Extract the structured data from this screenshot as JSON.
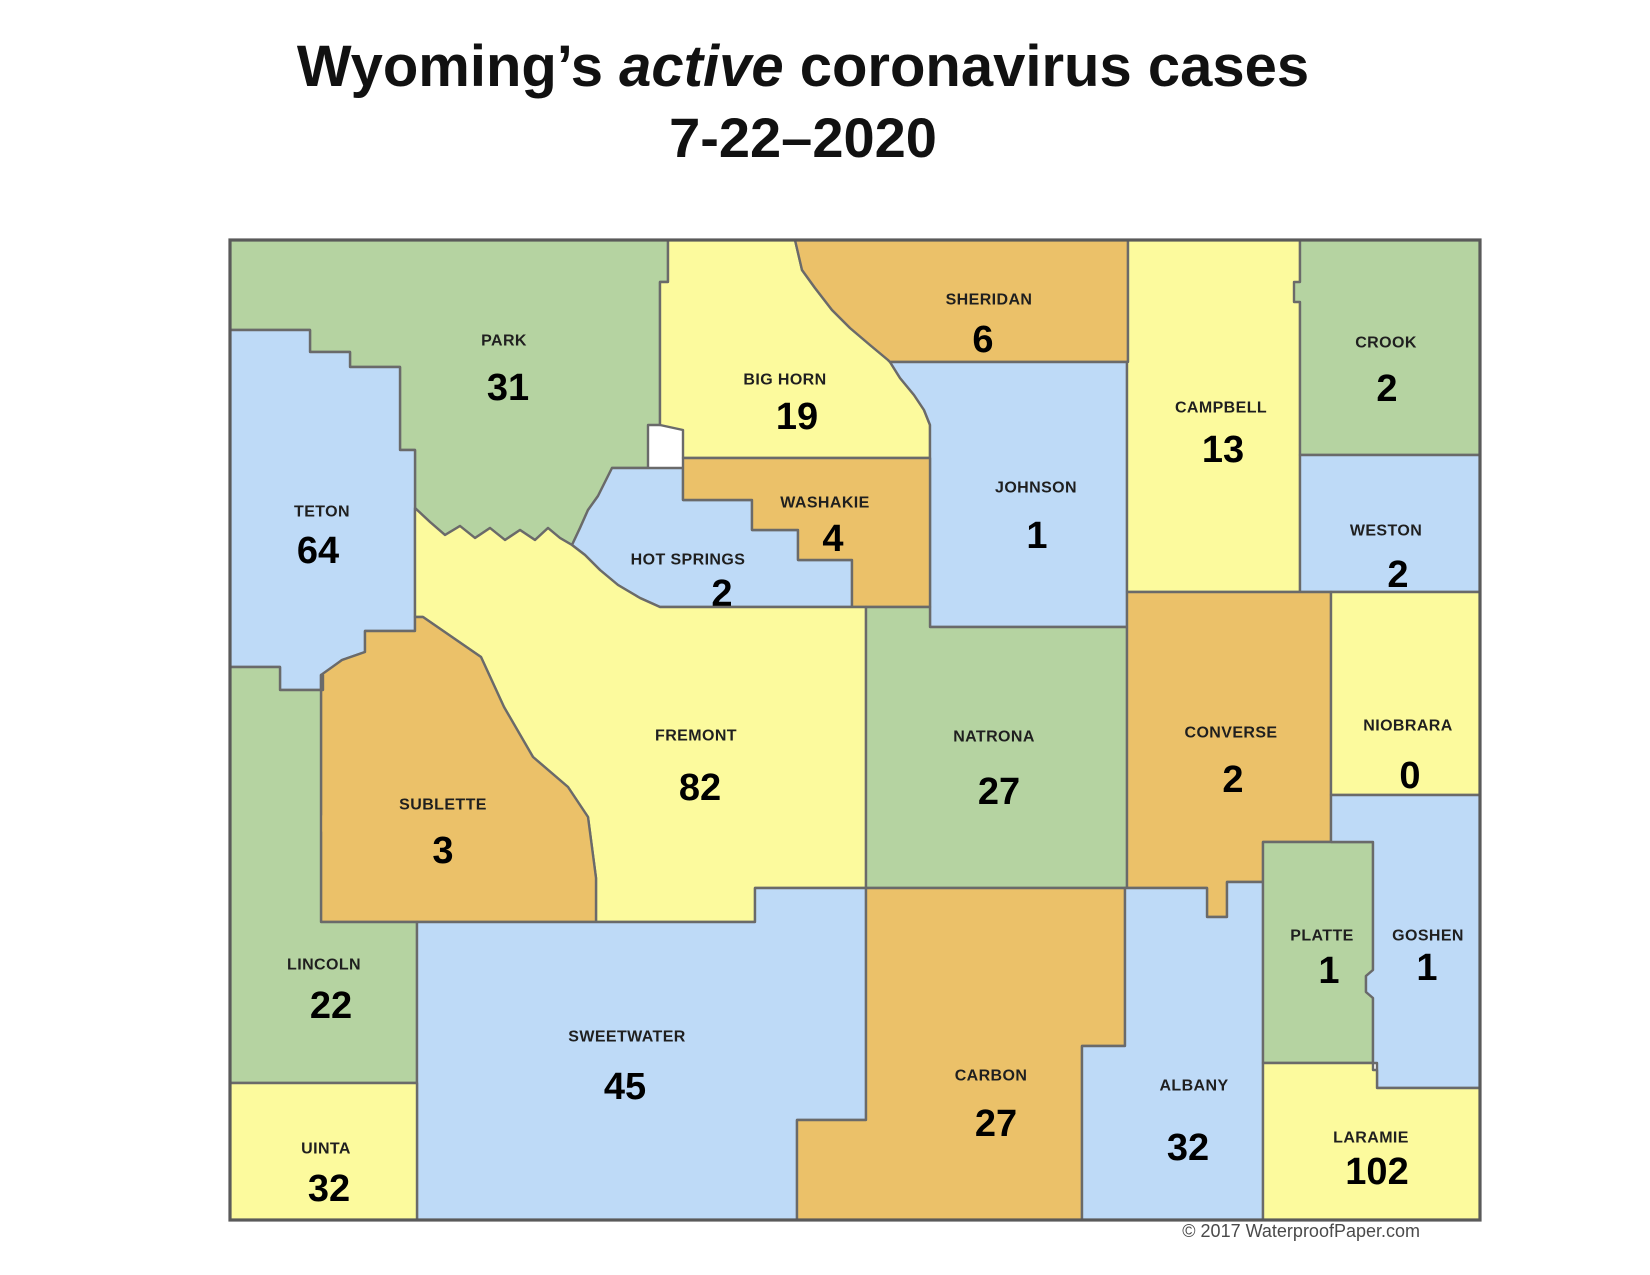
{
  "header": {
    "title_prefix": "Wyoming’s ",
    "title_emphasis": "active",
    "title_suffix": " coronavirus cases",
    "date": "7-22–2020"
  },
  "footer": {
    "copyright": "© 2017 WaterproofPaper.com"
  },
  "map": {
    "palette": {
      "green": "#b5d3a1",
      "yellow": "#fcfa9d",
      "blue": "#bedaf7",
      "orange": "#ebc169",
      "border": "#6a6a6a",
      "name_color": "#1f1f1f",
      "value_color": "#000000"
    },
    "counties": [
      {
        "id": "park",
        "name": "PARK",
        "cases": "31",
        "color": "green"
      },
      {
        "id": "bighorn",
        "name": "BIG HORN",
        "cases": "19",
        "color": "yellow"
      },
      {
        "id": "sheridan",
        "name": "SHERIDAN",
        "cases": "6",
        "color": "orange"
      },
      {
        "id": "johnson",
        "name": "JOHNSON",
        "cases": "1",
        "color": "blue"
      },
      {
        "id": "campbell",
        "name": "CAMPBELL",
        "cases": "13",
        "color": "yellow"
      },
      {
        "id": "crook",
        "name": "CROOK",
        "cases": "2",
        "color": "green"
      },
      {
        "id": "weston",
        "name": "WESTON",
        "cases": "2",
        "color": "blue"
      },
      {
        "id": "teton",
        "name": "TETON",
        "cases": "64",
        "color": "blue"
      },
      {
        "id": "hotsprings",
        "name": "HOT SPRINGS",
        "cases": "2",
        "color": "blue"
      },
      {
        "id": "washakie",
        "name": "WASHAKIE",
        "cases": "4",
        "color": "orange"
      },
      {
        "id": "fremont",
        "name": "FREMONT",
        "cases": "82",
        "color": "yellow"
      },
      {
        "id": "natrona",
        "name": "NATRONA",
        "cases": "27",
        "color": "green"
      },
      {
        "id": "converse",
        "name": "CONVERSE",
        "cases": "2",
        "color": "orange"
      },
      {
        "id": "niobrara",
        "name": "NIOBRARA",
        "cases": "0",
        "color": "yellow"
      },
      {
        "id": "sublette",
        "name": "SUBLETTE",
        "cases": "3",
        "color": "orange"
      },
      {
        "id": "lincoln",
        "name": "LINCOLN",
        "cases": "22",
        "color": "green"
      },
      {
        "id": "sweetwater",
        "name": "SWEETWATER",
        "cases": "45",
        "color": "blue"
      },
      {
        "id": "uinta",
        "name": "UINTA",
        "cases": "32",
        "color": "yellow"
      },
      {
        "id": "carbon",
        "name": "CARBON",
        "cases": "27",
        "color": "orange"
      },
      {
        "id": "albany",
        "name": "ALBANY",
        "cases": "32",
        "color": "blue"
      },
      {
        "id": "platte",
        "name": "PLATTE",
        "cases": "1",
        "color": "green"
      },
      {
        "id": "goshen",
        "name": "GOSHEN",
        "cases": "1",
        "color": "blue"
      },
      {
        "id": "laramie",
        "name": "LARAMIE",
        "cases": "102",
        "color": "yellow"
      }
    ]
  },
  "chart_data": {
    "type": "choropleth",
    "title": "Wyoming’s active coronavirus cases 7-22–2020",
    "unit": "active cases",
    "categories": [
      "Park",
      "Big Horn",
      "Sheridan",
      "Johnson",
      "Campbell",
      "Crook",
      "Weston",
      "Teton",
      "Hot Springs",
      "Washakie",
      "Fremont",
      "Natrona",
      "Converse",
      "Niobrara",
      "Sublette",
      "Lincoln",
      "Sweetwater",
      "Uinta",
      "Carbon",
      "Albany",
      "Platte",
      "Goshen",
      "Laramie"
    ],
    "values": [
      31,
      19,
      6,
      1,
      13,
      2,
      2,
      64,
      2,
      4,
      82,
      27,
      2,
      0,
      3,
      22,
      45,
      32,
      27,
      32,
      1,
      1,
      102
    ]
  }
}
